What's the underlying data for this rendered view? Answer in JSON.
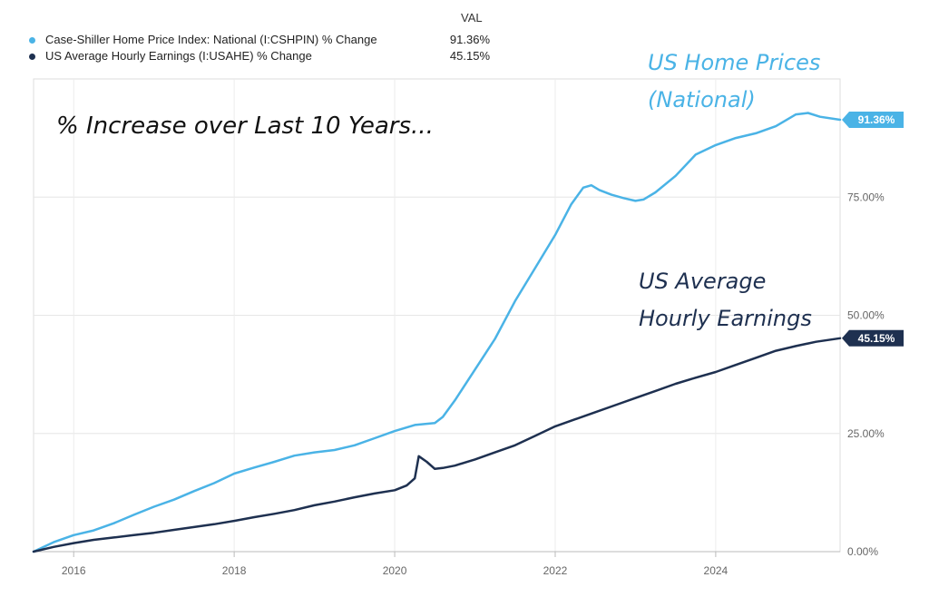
{
  "legend": {
    "header": "VAL",
    "items": [
      {
        "name": "Case-Shiller Home Price Index: National (I:CSHPIN) % Change",
        "value": "91.36%",
        "color": "#4ab3e6"
      },
      {
        "name": "US Average Hourly Earnings (I:USAHE) % Change",
        "value": "45.15%",
        "color": "#1e3050"
      }
    ]
  },
  "chart_data": {
    "type": "line",
    "title": "% Increase over Last 10 Years...",
    "xlabel": "",
    "ylabel": "",
    "xlim": [
      2015.5,
      2025.55
    ],
    "ylim": [
      0,
      100
    ],
    "x_ticks": [
      "2016",
      "2018",
      "2020",
      "2022",
      "2024"
    ],
    "x_tick_values": [
      2016,
      2018,
      2020,
      2022,
      2024
    ],
    "y_ticks": [
      "0.00%",
      "25.00%",
      "50.00%",
      "75.00%"
    ],
    "y_tick_values": [
      0,
      25,
      50,
      75
    ],
    "grid": true,
    "series": [
      {
        "name": "Case-Shiller Home Price Index: National (I:CSHPIN) % Change",
        "color": "#4ab3e6",
        "end_label": "91.36%",
        "x": [
          2015.5,
          2015.75,
          2016.0,
          2016.25,
          2016.5,
          2016.75,
          2017.0,
          2017.25,
          2017.5,
          2017.75,
          2018.0,
          2018.25,
          2018.5,
          2018.75,
          2019.0,
          2019.25,
          2019.5,
          2019.75,
          2020.0,
          2020.25,
          2020.5,
          2020.6,
          2020.75,
          2021.0,
          2021.25,
          2021.5,
          2021.75,
          2022.0,
          2022.2,
          2022.35,
          2022.45,
          2022.55,
          2022.7,
          2022.85,
          2023.0,
          2023.1,
          2023.25,
          2023.5,
          2023.75,
          2024.0,
          2024.25,
          2024.5,
          2024.75,
          2025.0,
          2025.15,
          2025.3,
          2025.55
        ],
        "y": [
          0,
          2.0,
          3.5,
          4.5,
          6.0,
          7.8,
          9.5,
          11.0,
          12.8,
          14.5,
          16.5,
          17.8,
          19.0,
          20.3,
          21.0,
          21.5,
          22.5,
          24.0,
          25.5,
          26.8,
          27.2,
          28.5,
          32.0,
          38.5,
          45.0,
          53.0,
          60.0,
          67.0,
          73.5,
          77.0,
          77.5,
          76.5,
          75.5,
          74.8,
          74.2,
          74.5,
          76.0,
          79.5,
          84.0,
          86.0,
          87.5,
          88.5,
          90.0,
          92.5,
          92.8,
          92.0,
          91.36
        ]
      },
      {
        "name": "US Average Hourly Earnings (I:USAHE) % Change",
        "color": "#1e3050",
        "end_label": "45.15%",
        "x": [
          2015.5,
          2015.75,
          2016.0,
          2016.25,
          2016.5,
          2016.75,
          2017.0,
          2017.25,
          2017.5,
          2017.75,
          2018.0,
          2018.25,
          2018.5,
          2018.75,
          2019.0,
          2019.25,
          2019.5,
          2019.75,
          2020.0,
          2020.15,
          2020.25,
          2020.3,
          2020.4,
          2020.5,
          2020.6,
          2020.75,
          2021.0,
          2021.25,
          2021.5,
          2021.75,
          2022.0,
          2022.25,
          2022.5,
          2022.75,
          2023.0,
          2023.25,
          2023.5,
          2023.75,
          2024.0,
          2024.25,
          2024.5,
          2024.75,
          2025.0,
          2025.25,
          2025.55
        ],
        "y": [
          0,
          1.0,
          1.8,
          2.5,
          3.0,
          3.5,
          4.0,
          4.6,
          5.2,
          5.8,
          6.5,
          7.3,
          8.0,
          8.8,
          9.8,
          10.6,
          11.5,
          12.3,
          13.0,
          14.0,
          15.5,
          20.2,
          19.0,
          17.5,
          17.7,
          18.2,
          19.5,
          21.0,
          22.5,
          24.5,
          26.5,
          28.0,
          29.5,
          31.0,
          32.5,
          34.0,
          35.5,
          36.8,
          38.0,
          39.5,
          41.0,
          42.5,
          43.5,
          44.4,
          45.15
        ]
      }
    ],
    "annotations": [
      {
        "text": "US Home Prices",
        "color": "#4ab3e6"
      },
      {
        "text": "(National)",
        "color": "#4ab3e6"
      },
      {
        "text": "US Average",
        "color": "#1e3050"
      },
      {
        "text": "Hourly Earnings",
        "color": "#1e3050"
      }
    ]
  }
}
